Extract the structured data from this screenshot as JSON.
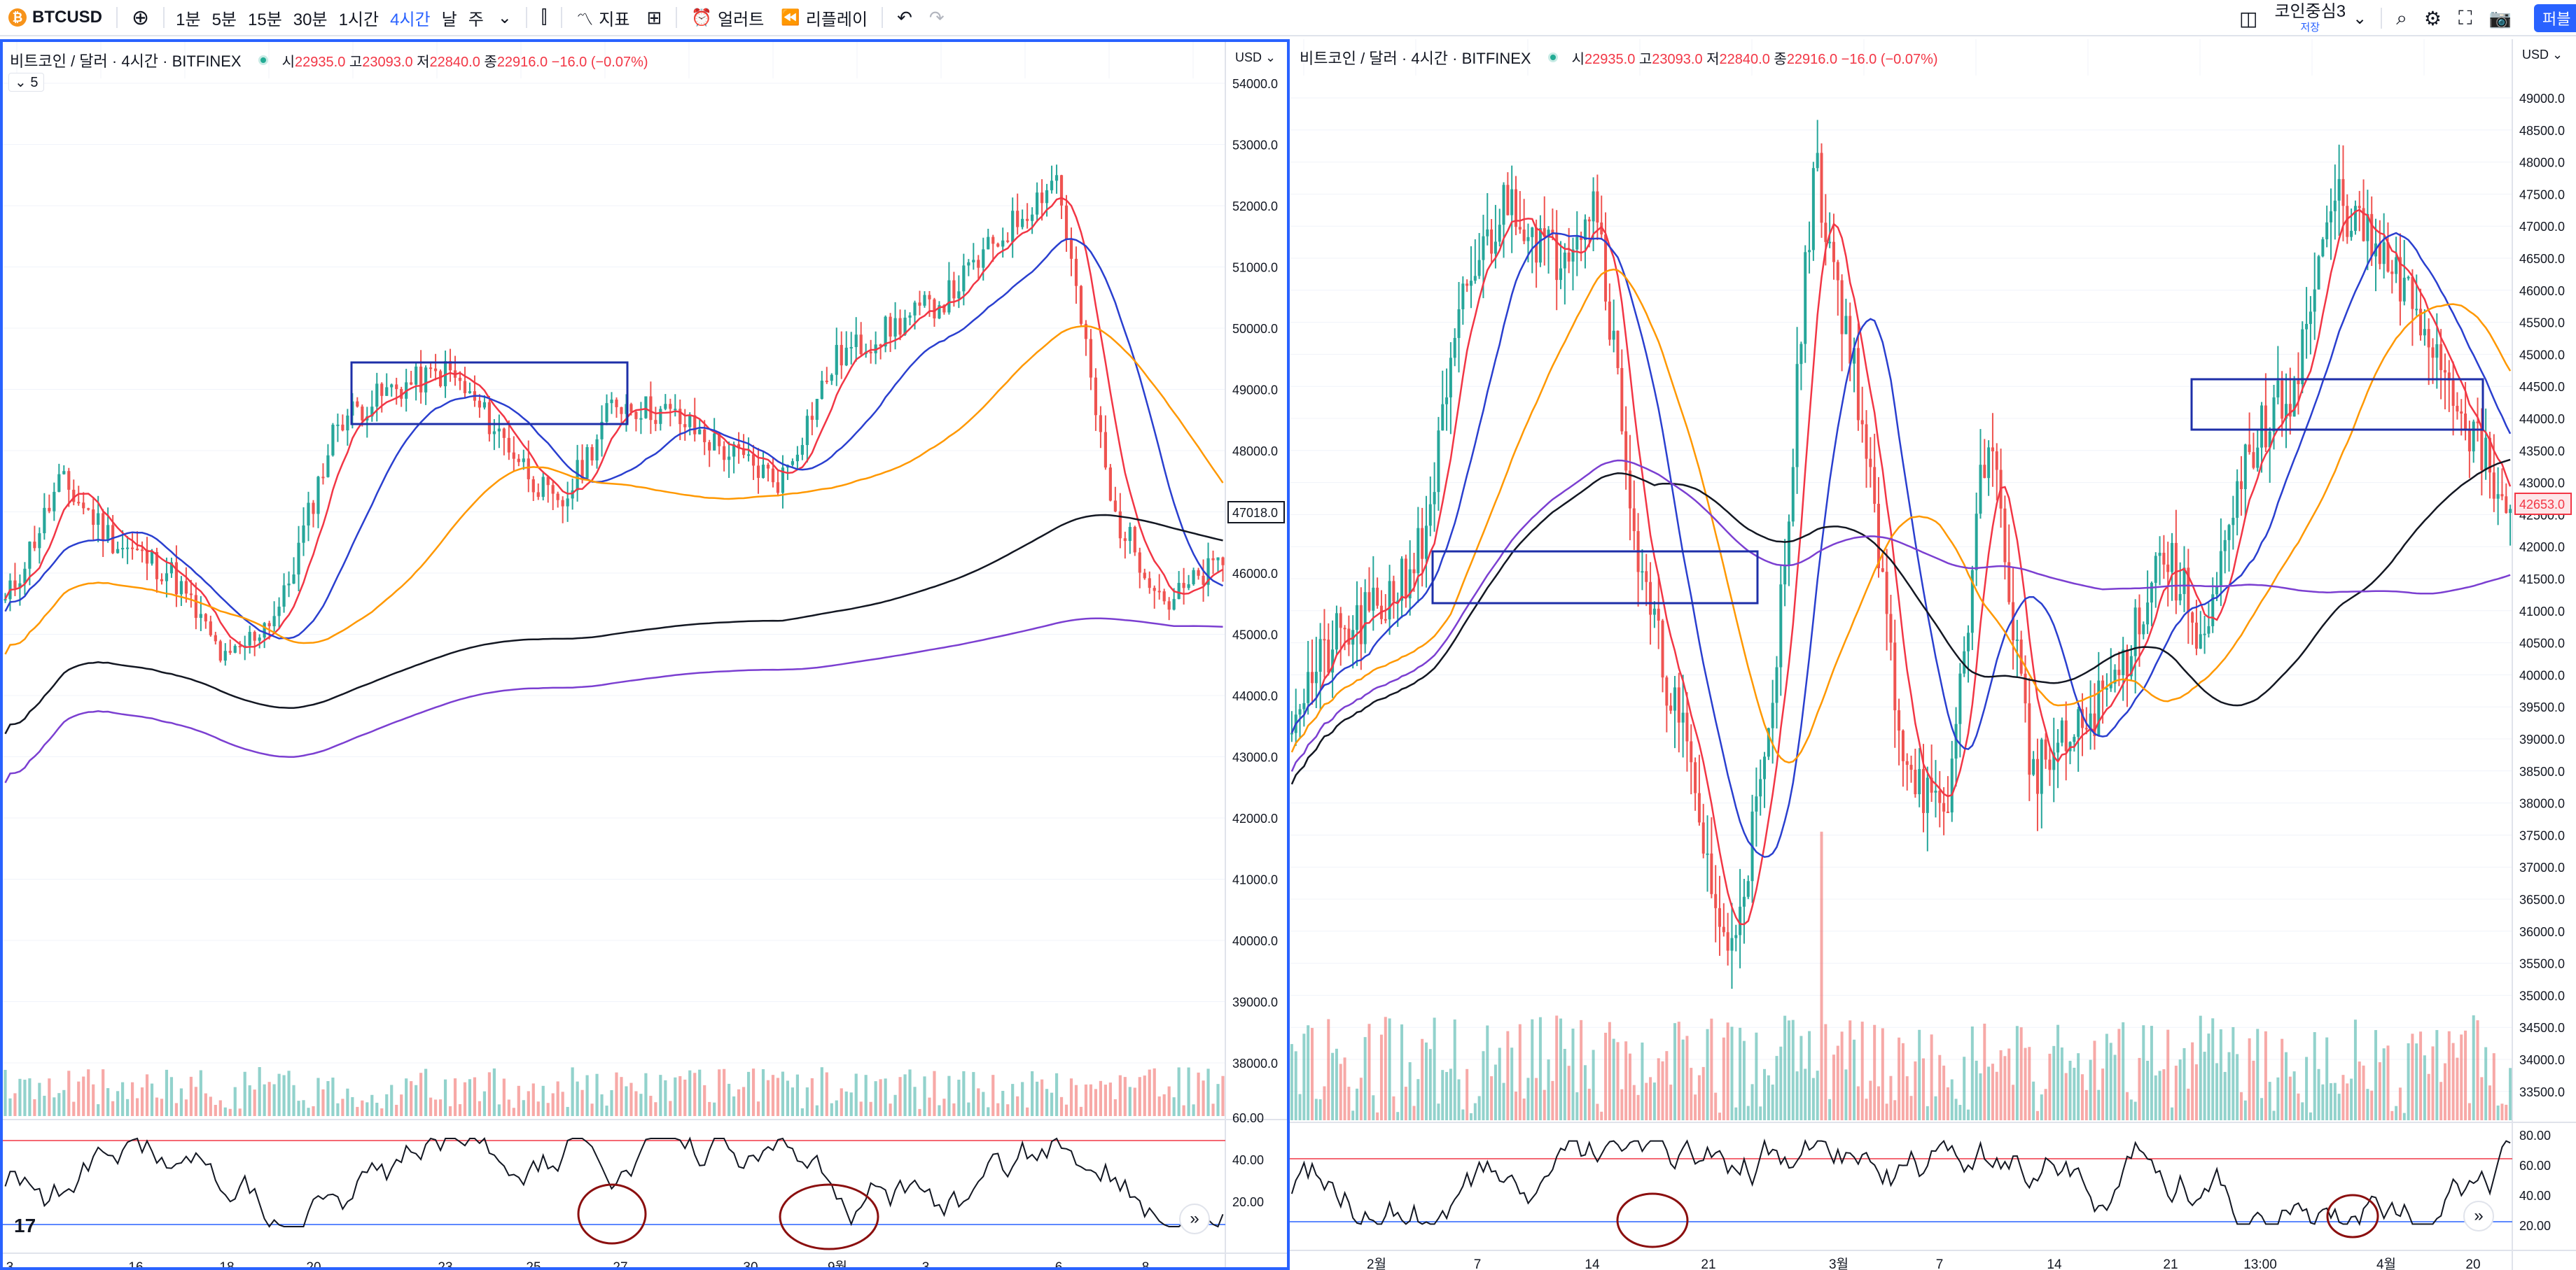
{
  "toolbar": {
    "symbol": "BTCUSD",
    "add_icon": "plus-circle-icon",
    "intervals": [
      "1분",
      "5분",
      "15분",
      "30분",
      "1시간",
      "4시간",
      "날",
      "주"
    ],
    "active_interval": "4시간",
    "indicators_label": "지표",
    "alert_label": "얼러트",
    "replay_label": "리플레이",
    "layout_name": "코인중심3",
    "layout_status": "저장",
    "publish_label": "퍼블"
  },
  "charts": [
    {
      "title": "비트코인 / 달러 · 4시간 · BITFINEX",
      "ohlc": {
        "o_label": "시",
        "o": "22935.0",
        "h_label": "고",
        "h": "23093.0",
        "l_label": "저",
        "l": "22840.0",
        "c_label": "종",
        "c": "22916.0",
        "change": "−16.0 (−0.07%)"
      },
      "collapse_label": "5",
      "currency": "USD",
      "price_ticks": [
        "54000.0",
        "53000.0",
        "52000.0",
        "51000.0",
        "50000.0",
        "49000.0",
        "48000.0",
        "47000.0",
        "46000.0",
        "45000.0",
        "44000.0",
        "43000.0",
        "42000.0",
        "41000.0",
        "40000.0",
        "39000.0",
        "38000.0"
      ],
      "current_price": "47018.0",
      "rsi_ticks": [
        "60.00",
        "40.00",
        "20.00"
      ],
      "time_ticks": [
        "3",
        "16",
        "18",
        "20",
        "23",
        "25",
        "27",
        "30",
        "9월",
        "3",
        "6",
        "8"
      ]
    },
    {
      "title": "비트코인 / 달러 · 4시간 · BITFINEX",
      "ohlc": {
        "o_label": "시",
        "o": "22935.0",
        "h_label": "고",
        "h": "23093.0",
        "l_label": "저",
        "l": "22840.0",
        "c_label": "종",
        "c": "22916.0",
        "change": "−16.0 (−0.07%)"
      },
      "currency": "USD",
      "price_ticks": [
        "49000.0",
        "48500.0",
        "48000.0",
        "47500.0",
        "47000.0",
        "46500.0",
        "46000.0",
        "45500.0",
        "45000.0",
        "44500.0",
        "44000.0",
        "43500.0",
        "43000.0",
        "42500.0",
        "42000.0",
        "41500.0",
        "41000.0",
        "40500.0",
        "40000.0",
        "39500.0",
        "39000.0",
        "38500.0",
        "38000.0",
        "37500.0",
        "37000.0",
        "36500.0",
        "36000.0",
        "35500.0",
        "35000.0",
        "34500.0",
        "34000.0",
        "33500.0"
      ],
      "current_price": "42653.0",
      "rsi_ticks": [
        "80.00",
        "60.00",
        "40.00",
        "20.00"
      ],
      "time_ticks": [
        "2월",
        "7",
        "14",
        "21",
        "3월",
        "7",
        "14",
        "21",
        "13:00",
        "4월",
        "20"
      ]
    }
  ],
  "colors": {
    "up": "#26a69a",
    "down": "#ef5350",
    "ma_red": "#f23645",
    "ma_blue": "#2a3fcf",
    "ma_orange": "#ff9800",
    "ma_black": "#131722",
    "ma_purple": "#7b3fd1",
    "box": "#1e2fa8",
    "circle": "#8b0f0f",
    "accent": "#2962ff"
  }
}
